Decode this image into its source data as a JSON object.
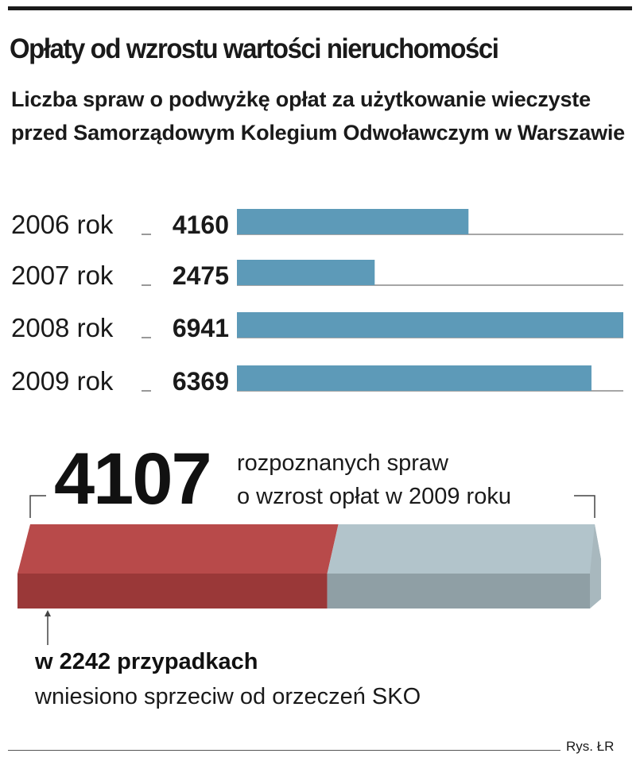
{
  "header": {
    "title": "Opłaty od wzrostu wartości nieruchomości",
    "subtitle": "Liczba spraw o podwyżkę opłat za użytkowanie wieczyste przed Samorządowym Kolegium Odwoławczym w Warszawie"
  },
  "chart_data": [
    {
      "type": "bar",
      "orientation": "horizontal",
      "categories": [
        "2006 rok",
        "2007 rok",
        "2008 rok",
        "2009 rok"
      ],
      "values": [
        4160,
        2475,
        6941,
        6369
      ],
      "xlim": [
        0,
        6941
      ],
      "grid": false,
      "bar_color": "#5d9ab8"
    },
    {
      "type": "bar",
      "orientation": "horizontal",
      "stacked": true,
      "total": 4107,
      "total_label": "rozpoznanych spraw o wzrost opłat w 2009 roku",
      "segments": [
        {
          "value": 2242,
          "color": "#b84a4a"
        },
        {
          "value": 1865,
          "color": "#b2c4cb"
        }
      ],
      "annotation": {
        "bold": "w 2242 przypadkach",
        "text": "wniesiono sprzeciw od orzeczeń SKO"
      }
    }
  ],
  "total_block": {
    "number": "4107",
    "line1": "rozpoznanych spraw",
    "line2": "o wzrost opłat w 2009 roku"
  },
  "annotation": {
    "bold": "w 2242 przypadkach",
    "text": "wniesiono sprzeciw od orzeczeń SKO"
  },
  "footer": {
    "credit": "Rys. ŁR"
  },
  "colors": {
    "bar": "#5d9ab8",
    "red_segment": "#b84a4a",
    "grey_segment": "#b2c4cb"
  }
}
